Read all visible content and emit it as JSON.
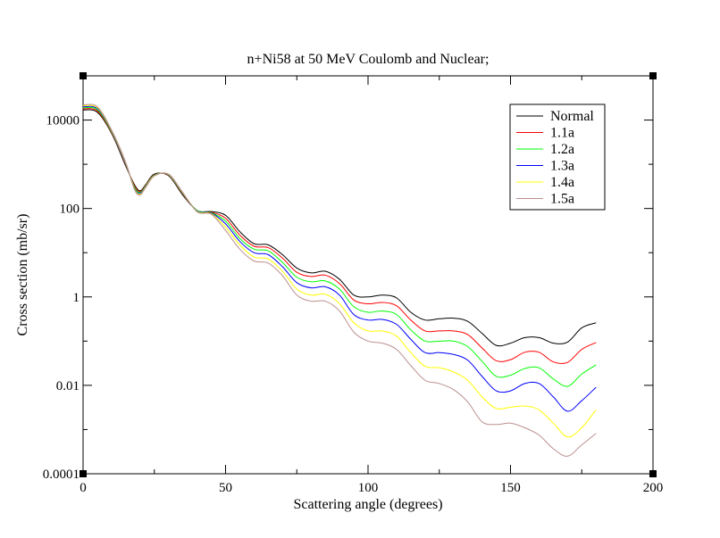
{
  "chart_data": {
    "type": "line",
    "title": "n+Ni58 at 50 MeV Coulomb and Nuclear;",
    "xlabel": "Scattering angle (degrees)",
    "ylabel": "Cross section (mb/sr)",
    "xlim": [
      0,
      200
    ],
    "ylim": [
      0.0001,
      100000
    ],
    "yscale": "log",
    "grid": false,
    "legend_position": "top-right",
    "x_ticks": [
      {
        "value": 0,
        "label": "0"
      },
      {
        "value": 50,
        "label": "50"
      },
      {
        "value": 100,
        "label": "100"
      },
      {
        "value": 150,
        "label": "150"
      },
      {
        "value": 200,
        "label": "200"
      }
    ],
    "y_ticks": [
      {
        "value": 0.0001,
        "label": "0.0001"
      },
      {
        "value": 0.01,
        "label": "0.01"
      },
      {
        "value": 1,
        "label": "1"
      },
      {
        "value": 100,
        "label": "100"
      },
      {
        "value": 10000,
        "label": "10000"
      }
    ],
    "x": [
      0,
      5,
      10,
      15,
      18,
      20,
      22,
      25,
      30,
      35,
      40,
      45,
      50,
      55,
      60,
      65,
      70,
      75,
      80,
      85,
      90,
      95,
      100,
      105,
      110,
      115,
      120,
      125,
      130,
      135,
      140,
      145,
      150,
      155,
      160,
      165,
      170,
      175,
      180
    ],
    "series": [
      {
        "name": "Normal",
        "color": "#000000",
        "values": [
          17000,
          15000,
          5000,
          900,
          350,
          250,
          350,
          600,
          550,
          200,
          90,
          85,
          70,
          30,
          16,
          15,
          9,
          4.5,
          3.5,
          3.8,
          2.5,
          1.1,
          1.0,
          1.1,
          0.95,
          0.45,
          0.3,
          0.32,
          0.33,
          0.28,
          0.15,
          0.08,
          0.09,
          0.12,
          0.12,
          0.09,
          0.095,
          0.2,
          0.26
        ]
      },
      {
        "name": "1.1a",
        "color": "#ff0000",
        "values": [
          18000,
          16000,
          5200,
          950,
          330,
          240,
          340,
          580,
          560,
          210,
          90,
          82,
          60,
          25,
          14,
          13,
          7.5,
          3.6,
          2.9,
          3.1,
          2.0,
          0.85,
          0.7,
          0.75,
          0.63,
          0.3,
          0.17,
          0.17,
          0.17,
          0.14,
          0.07,
          0.036,
          0.038,
          0.056,
          0.056,
          0.034,
          0.033,
          0.065,
          0.093
        ]
      },
      {
        "name": "1.2a",
        "color": "#00ff00",
        "values": [
          19000,
          17000,
          5400,
          980,
          310,
          230,
          330,
          570,
          570,
          215,
          90,
          80,
          52,
          21,
          12,
          11,
          6.0,
          2.8,
          2.2,
          2.3,
          1.5,
          0.6,
          0.45,
          0.48,
          0.4,
          0.18,
          0.1,
          0.1,
          0.1,
          0.075,
          0.035,
          0.016,
          0.017,
          0.024,
          0.025,
          0.014,
          0.0095,
          0.018,
          0.029
        ]
      },
      {
        "name": "1.3a",
        "color": "#0000ff",
        "values": [
          20000,
          18000,
          5600,
          1000,
          290,
          220,
          320,
          560,
          580,
          220,
          88,
          78,
          45,
          18,
          10,
          9,
          4.8,
          2.1,
          1.6,
          1.7,
          1.1,
          0.4,
          0.3,
          0.31,
          0.24,
          0.11,
          0.055,
          0.055,
          0.05,
          0.037,
          0.016,
          0.0075,
          0.0075,
          0.011,
          0.011,
          0.0055,
          0.0026,
          0.0045,
          0.009
        ]
      },
      {
        "name": "1.4a",
        "color": "#ffff00",
        "values": [
          21000,
          19000,
          5800,
          1050,
          280,
          210,
          310,
          550,
          590,
          225,
          86,
          76,
          38,
          15,
          8.0,
          7.2,
          3.8,
          1.5,
          1.1,
          1.15,
          0.7,
          0.26,
          0.17,
          0.17,
          0.13,
          0.055,
          0.027,
          0.025,
          0.02,
          0.013,
          0.0055,
          0.003,
          0.0032,
          0.0034,
          0.0028,
          0.0014,
          0.00068,
          0.0011,
          0.0028
        ]
      },
      {
        "name": "1.5a",
        "color": "#bc8f8f",
        "values": [
          22000,
          20000,
          6000,
          1100,
          270,
          200,
          300,
          540,
          600,
          230,
          84,
          74,
          32,
          12,
          6.5,
          5.8,
          3.0,
          1.1,
          0.8,
          0.8,
          0.48,
          0.16,
          0.1,
          0.09,
          0.065,
          0.028,
          0.013,
          0.011,
          0.008,
          0.0042,
          0.0015,
          0.0013,
          0.0014,
          0.0011,
          0.00075,
          0.00037,
          0.00025,
          0.00045,
          0.00082
        ]
      }
    ]
  }
}
